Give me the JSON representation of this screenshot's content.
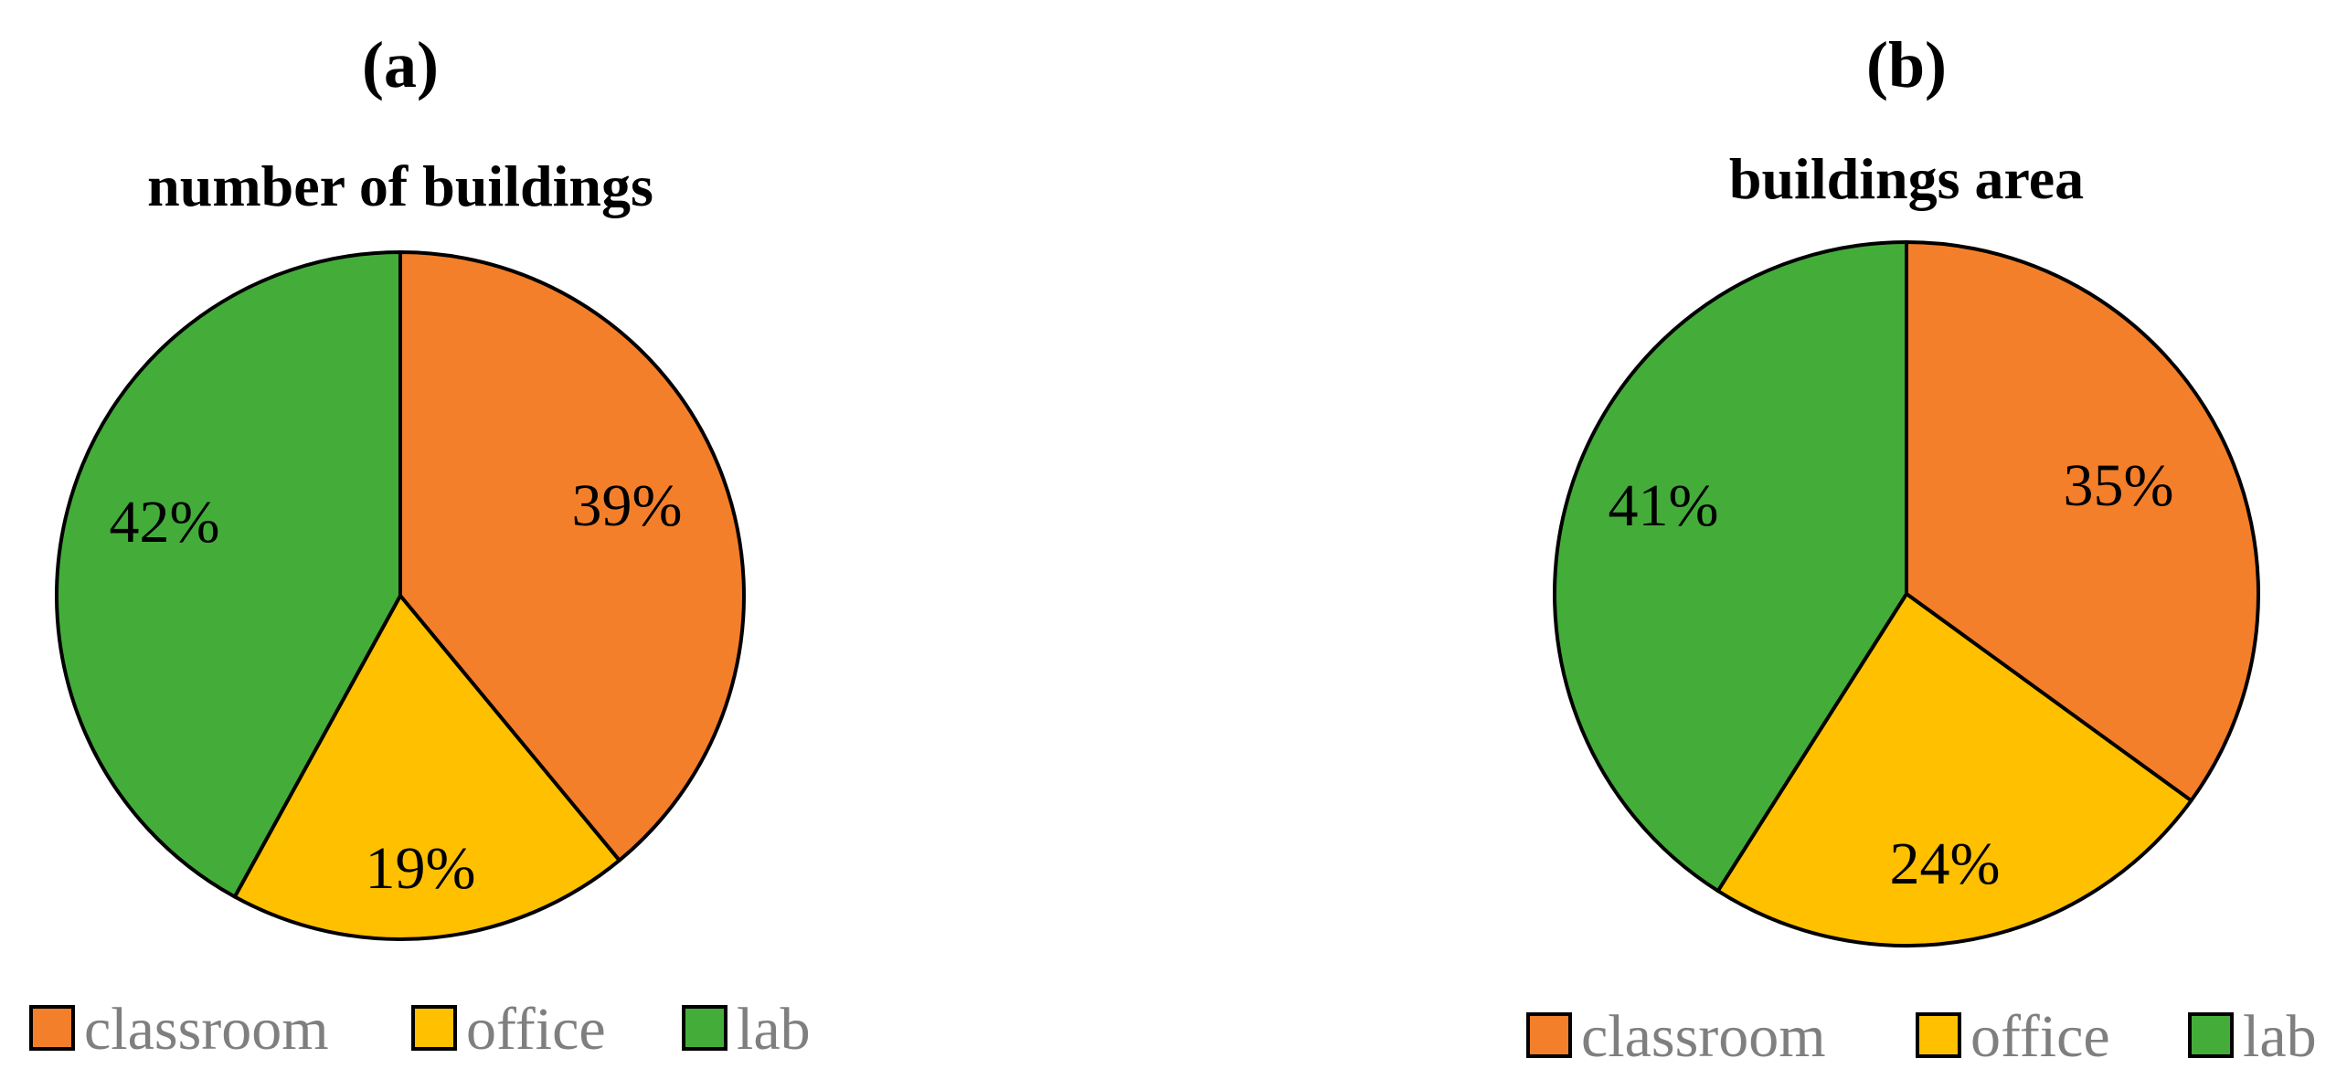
{
  "chart_data": [
    {
      "type": "pie",
      "panel": "(a)",
      "title": "number of buildings",
      "slices": [
        {
          "label": "classroom",
          "value": 39,
          "text": "39%",
          "color": "#F47F2A"
        },
        {
          "label": "office",
          "value": 19,
          "text": "19%",
          "color": "#FFC000"
        },
        {
          "label": "lab",
          "value": 42,
          "text": "42%",
          "color": "#44AD3A"
        }
      ],
      "legend": [
        "classroom",
        "office",
        "lab"
      ],
      "legend_position": "bottom"
    },
    {
      "type": "pie",
      "panel": "(b)",
      "title": "buildings area",
      "slices": [
        {
          "label": "classroom",
          "value": 35,
          "text": "35%",
          "color": "#F47F2A"
        },
        {
          "label": "office",
          "value": 24,
          "text": "24%",
          "color": "#FFC000"
        },
        {
          "label": "lab",
          "value": 41,
          "text": "41%",
          "color": "#44AD3A"
        }
      ],
      "legend": [
        "classroom",
        "office",
        "lab"
      ],
      "legend_position": "bottom"
    }
  ]
}
